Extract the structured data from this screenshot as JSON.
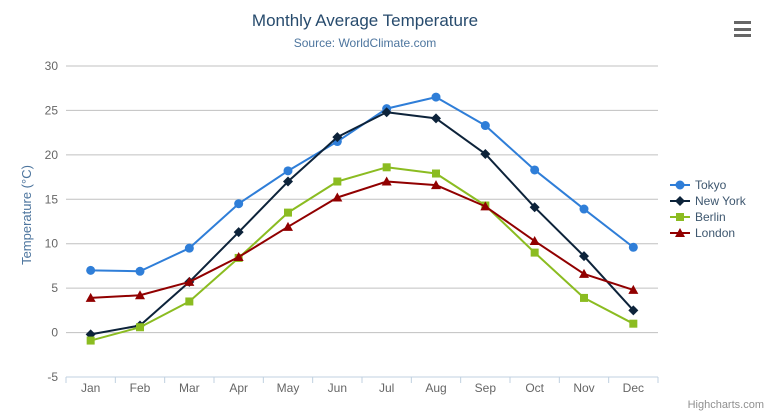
{
  "header": {
    "title": "Monthly Average Temperature",
    "subtitle": "Source: WorldClimate.com"
  },
  "context_menu": {
    "icon": "hamburger",
    "bars": 3
  },
  "credits": "Highcharts.com",
  "legend": {
    "position": "right",
    "items": [
      "Tokyo",
      "New York",
      "Berlin",
      "London"
    ]
  },
  "chart_data": {
    "type": "line",
    "title": "Monthly Average Temperature",
    "subtitle": "Source: WorldClimate.com",
    "categories": [
      "Jan",
      "Feb",
      "Mar",
      "Apr",
      "May",
      "Jun",
      "Jul",
      "Aug",
      "Sep",
      "Oct",
      "Nov",
      "Dec"
    ],
    "xlabel": "",
    "ylabel": "Temperature (°C)",
    "ylim": [
      -5,
      30
    ],
    "ytick_step": 5,
    "yticks": [
      30,
      25,
      20,
      15,
      10,
      5,
      0,
      -5
    ],
    "grid": true,
    "legend_position": "right",
    "series": [
      {
        "name": "Tokyo",
        "color": "#2f7ed8",
        "marker": "circle",
        "values": [
          7.0,
          6.9,
          9.5,
          14.5,
          18.2,
          21.5,
          25.2,
          26.5,
          23.3,
          18.3,
          13.9,
          9.6
        ]
      },
      {
        "name": "New York",
        "color": "#0d233a",
        "marker": "diamond",
        "values": [
          -0.2,
          0.8,
          5.7,
          11.3,
          17.0,
          22.0,
          24.8,
          24.1,
          20.1,
          14.1,
          8.6,
          2.5
        ]
      },
      {
        "name": "Berlin",
        "color": "#8bbc21",
        "marker": "square",
        "values": [
          -0.9,
          0.6,
          3.5,
          8.4,
          13.5,
          17.0,
          18.6,
          17.9,
          14.3,
          9.0,
          3.9,
          1.0
        ]
      },
      {
        "name": "London",
        "color": "#910000",
        "marker": "triangle",
        "values": [
          3.9,
          4.2,
          5.7,
          8.5,
          11.9,
          15.2,
          17.0,
          16.6,
          14.2,
          10.3,
          6.6,
          4.8
        ]
      }
    ]
  },
  "colors": {
    "grid_line": "#C0C0C0",
    "axis_line": "#C0D0E0",
    "tick_label": "#666666",
    "title": "#274b6d",
    "subtitle": "#4d759e",
    "axis_title": "#4d759e",
    "legend_text": "#3E576F",
    "credits": "#909090",
    "menu_icon": "#666666",
    "background": "#ffffff"
  }
}
